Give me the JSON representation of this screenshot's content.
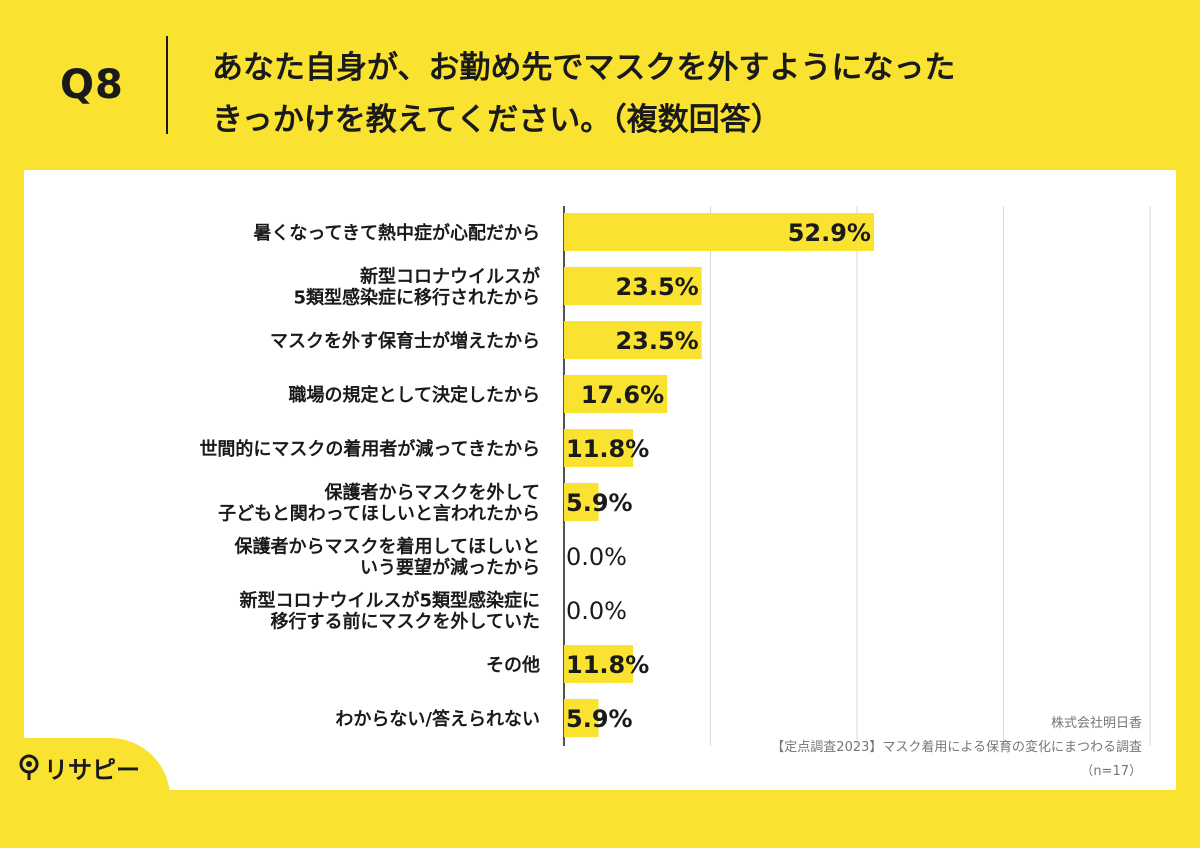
{
  "header": {
    "q_label": "Q8",
    "question_line1": "あなた自身が、お勤め先でマスクを外すようになった",
    "question_line2": "きっかけを教えてください。（複数回答）"
  },
  "footer": {
    "company": "株式会社明日香",
    "survey": "【定点調査2023】マスク着用による保育の変化にまつわる調査",
    "sample": "（n=17）"
  },
  "logo": {
    "text": "リサピー",
    "icon": "magnifier-pin-icon"
  },
  "colors": {
    "background": "#F9E230",
    "bar": "#F9E230",
    "panel": "#FFFFFF",
    "grid": "#D9D9D9"
  },
  "chart_data": {
    "type": "bar",
    "orientation": "horizontal",
    "xlim": [
      0,
      100
    ],
    "grid": true,
    "categories": [
      [
        "暑くなってきて熱中症が心配だから"
      ],
      [
        "新型コロナウイルスが",
        "5類型感染症に移行されたから"
      ],
      [
        "マスクを外す保育士が増えたから"
      ],
      [
        "職場の規定として決定したから"
      ],
      [
        "世間的にマスクの着用者が減ってきたから"
      ],
      [
        "保護者からマスクを外して",
        "子どもと関わってほしいと言われたから"
      ],
      [
        "保護者からマスクを着用してほしいと",
        "いう要望が減ったから"
      ],
      [
        "新型コロナウイルスが5類型感染症に",
        "移行する前にマスクを外していた"
      ],
      [
        "その他"
      ],
      [
        "わからない/答えられない"
      ]
    ],
    "values": [
      52.9,
      23.5,
      23.5,
      17.6,
      11.8,
      5.9,
      0.0,
      0.0,
      11.8,
      5.9
    ],
    "value_labels": [
      "52.9%",
      "23.5%",
      "23.5%",
      "17.6%",
      "11.8%",
      "5.9%",
      "0.0%",
      "0.0%",
      "11.8%",
      "5.9%"
    ]
  }
}
